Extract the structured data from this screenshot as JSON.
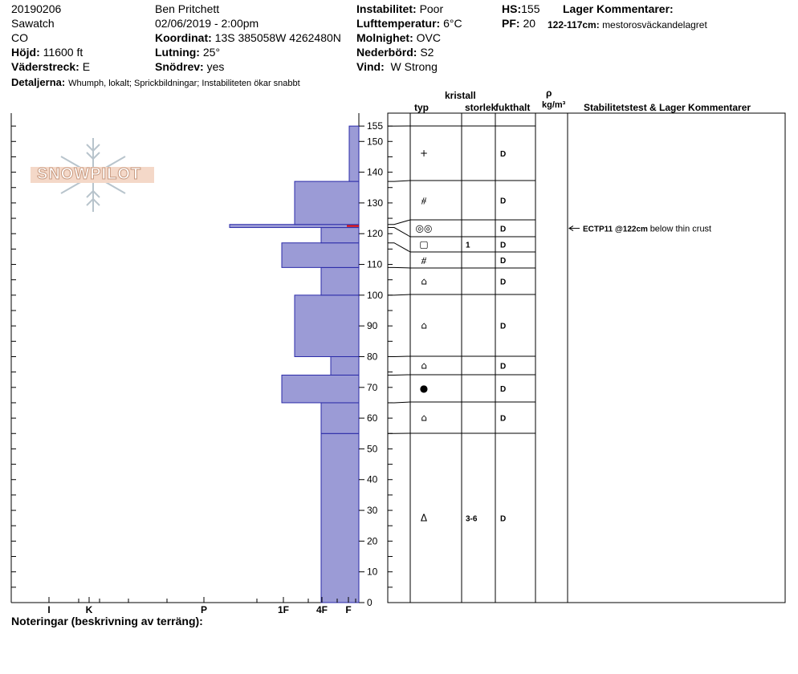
{
  "header": {
    "date": "20190206",
    "range": "Sawatch",
    "state": "CO",
    "elevation_label": "Höjd:",
    "elevation": "11600 ft",
    "aspect_label": "Väderstreck:",
    "aspect": "E",
    "details_label": "Detaljerna:",
    "details": "Whumph, lokalt;  Sprickbildningar;  Instabiliteten ökar snabbt",
    "observer": "Ben Pritchett",
    "datetime": "02/06/2019 - 2:00pm",
    "coord_label": "Koordinat:",
    "coord": "13S 385058W 4262480N",
    "slope_label": "Lutning:",
    "slope": "25°",
    "drift_label": "Snödrev:",
    "drift": "yes",
    "instability_label": "Instabilitet:",
    "instability": "Poor",
    "airtemp_label": "Lufttemperatur:",
    "airtemp": "6°C",
    "sky_label": "Molnighet:",
    "sky": "OVC",
    "precip_label": "Nederbörd:",
    "precip": "S2",
    "wind_label": "Vind:",
    "wind": "W Strong",
    "hs_label": "HS:",
    "hs": "155",
    "pf_label": "PF:",
    "pf": "20",
    "layer_comments_label": "Lager Kommentarer:",
    "layer_comment_range": "122-117cm:",
    "layer_comment_text": "mestorosväckandelagret"
  },
  "columns": {
    "kristall": "kristall",
    "typ": "typ",
    "storlek": "storlek",
    "fukthalt": "fukthalt",
    "rho": "ρ",
    "density_unit": "kg/m³",
    "stability": "Stabilitetstest & Lager Kommentarer"
  },
  "footer": {
    "notes_label": "Noteringar (beskrivning av terräng):"
  },
  "logo_text": "SNOWPILOT",
  "chart_data": {
    "type": "bar",
    "orientation": "horizontal",
    "y_axis": {
      "range": [
        0,
        160
      ],
      "ticks": [
        0,
        10,
        20,
        30,
        40,
        50,
        60,
        70,
        80,
        90,
        100,
        110,
        120,
        130,
        140,
        150,
        155
      ]
    },
    "hardness_scale": [
      "I",
      "K",
      "P",
      "1F",
      "4F",
      "F"
    ],
    "hardness_index": {
      "F": 1,
      "4F": 2,
      "1F": 3,
      "P": 4,
      "K": 5,
      "I": 6
    },
    "layers": [
      {
        "bottom": 0,
        "top": 55,
        "hardness": "4F",
        "grain": "ⵠ",
        "grain_name": "depth-hoar",
        "size": "3-6",
        "moisture": "D"
      },
      {
        "bottom": 55,
        "top": 65,
        "hardness": "4F",
        "grain": "⌂",
        "grain_name": "faceted-rounded",
        "size": "",
        "moisture": "D"
      },
      {
        "bottom": 65,
        "top": 74,
        "hardness": "1F",
        "grain": "●",
        "grain_name": "rounded-grains",
        "size": "",
        "moisture": "D"
      },
      {
        "bottom": 74,
        "top": 80,
        "hardness": "4F-",
        "grain": "⌂",
        "grain_name": "faceted-rounded",
        "size": "",
        "moisture": "D"
      },
      {
        "bottom": 80,
        "top": 100,
        "hardness": "1F-",
        "grain": "⌂",
        "grain_name": "faceted-rounded",
        "size": "",
        "moisture": "D"
      },
      {
        "bottom": 100,
        "top": 109,
        "hardness": "4F",
        "grain": "⌂",
        "grain_name": "faceted-rounded",
        "size": "",
        "moisture": "D"
      },
      {
        "bottom": 109,
        "top": 117,
        "hardness": "1F",
        "grain": "⧣",
        "grain_name": "decomposing-fragments",
        "size": "",
        "moisture": "D"
      },
      {
        "bottom": 117,
        "top": 122,
        "hardness": "4F+",
        "grain": "▢",
        "grain_name": "faceted-crystals",
        "size": "1",
        "moisture": "D"
      },
      {
        "bottom": 122,
        "top": 123,
        "hardness": "P+",
        "grain": "◎◎",
        "grain_name": "melt-freeze-crust",
        "size": "",
        "moisture": "D"
      },
      {
        "bottom": 123,
        "top": 137,
        "hardness": "1F-",
        "grain": "⧣",
        "grain_name": "decomposing-fragments",
        "size": "",
        "moisture": "D"
      },
      {
        "bottom": 137,
        "top": 155,
        "hardness": "F+",
        "grain": "+",
        "grain_name": "precipitation-particles",
        "size": "",
        "moisture": "D"
      }
    ],
    "stability_tests": [
      {
        "depth": 122,
        "result": "ECTP11 @122cm",
        "comment": "below thin crust"
      }
    ]
  }
}
